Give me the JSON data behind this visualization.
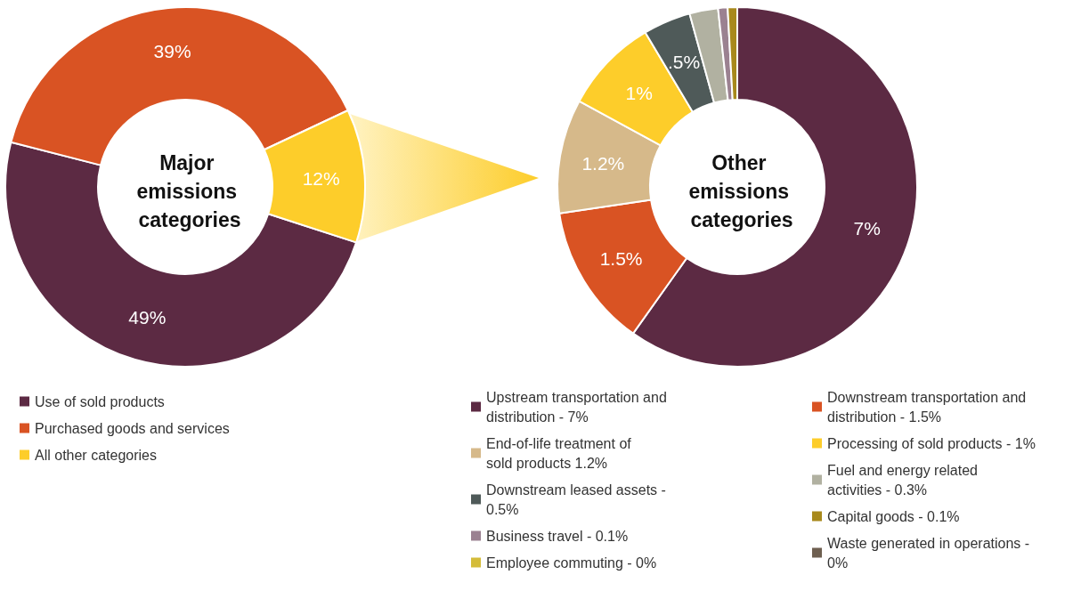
{
  "chart_data": [
    {
      "type": "donut",
      "title": "Major emissions categories",
      "categories": [
        "Use of sold products",
        "Purchased goods and services",
        "All other categories"
      ],
      "values": [
        49,
        39,
        12
      ],
      "colors": [
        "#5c2a43",
        "#d95323",
        "#fdcd2a"
      ],
      "value_labels": [
        "49%",
        "39%",
        "12%"
      ],
      "legend": "bottom left"
    },
    {
      "type": "donut",
      "title": "Other emissions categories",
      "categories": [
        "Upstream transportation and distribution - 7%",
        "Downstream transportation and distribution - 1.5%",
        "End-of-life treatment of sold products 1.2%",
        "Processing of sold products - 1%",
        "Downstream leased assets - 0.5%",
        "Fuel and energy related activities - 0.3%",
        "Business travel - 0.1%",
        "Capital goods - 0.1%",
        "Employee commuting - 0%",
        "Waste generated in operations - 0%"
      ],
      "values": [
        7,
        1.5,
        1.2,
        1,
        0.5,
        0.3,
        0.1,
        0.1,
        0,
        0
      ],
      "colors": [
        "#5c2a43",
        "#d95323",
        "#d6b98a",
        "#fdcd2a",
        "#4f5a59",
        "#b1b1a1",
        "#9b8191",
        "#a8891c",
        "#d4bc3a",
        "#6e5f50"
      ],
      "value_labels": [
        "7%",
        "1.5%",
        "1.2%",
        "1%",
        ".5%",
        null,
        null,
        null,
        null,
        null
      ],
      "legend": "bottom"
    }
  ]
}
